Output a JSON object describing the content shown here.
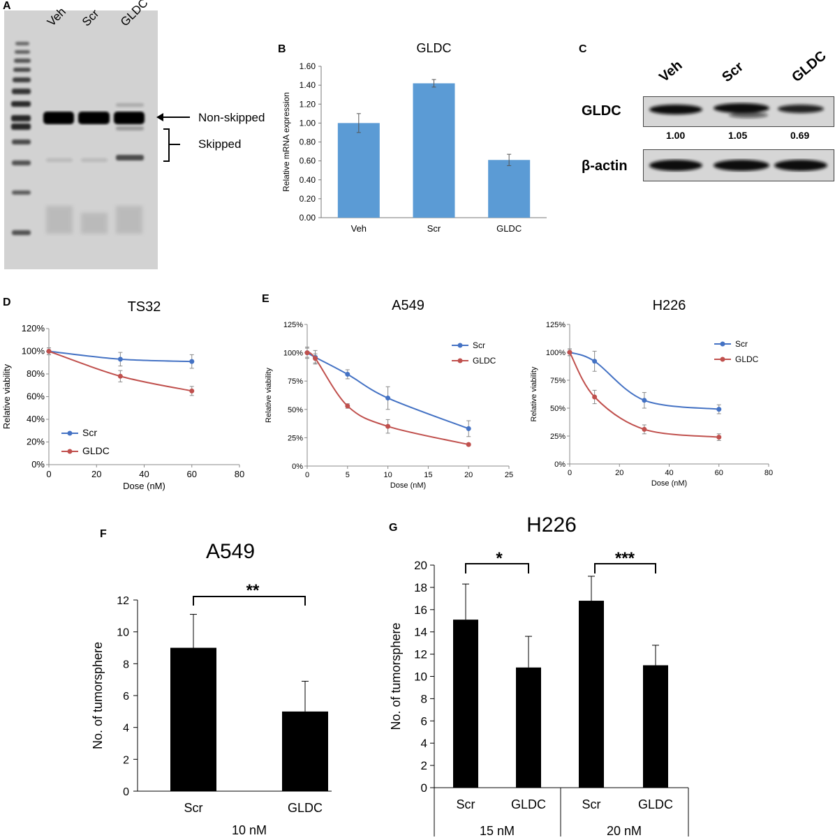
{
  "panels": {
    "A": "A",
    "B": "B",
    "C": "C",
    "D": "D",
    "E": "E",
    "F": "F",
    "G": "G"
  },
  "panel_a": {
    "lanes": [
      "Veh",
      "Scr",
      "GLDC"
    ],
    "non_skipped_label": "Non-skipped",
    "skipped_label": "Skipped"
  },
  "panel_c": {
    "lanes": [
      "Veh",
      "Scr",
      "GLDC"
    ],
    "gldc_label": "GLDC",
    "actin_label": "β-actin",
    "quant": [
      "1.00",
      "1.05",
      "0.69"
    ]
  },
  "colors": {
    "bar_blue": "#5b9bd5",
    "scr_line": "#4472c4",
    "gldc_line": "#c0504d",
    "black": "#000000"
  },
  "chart_data": [
    {
      "id": "B",
      "type": "bar",
      "title": "GLDC",
      "categories": [
        "Veh",
        "Scr",
        "GLDC"
      ],
      "values": [
        1.0,
        1.42,
        0.61
      ],
      "errors": [
        0.1,
        0.04,
        0.06
      ],
      "ylabel": "Relative mRNA expression",
      "xlabel": "",
      "ylim": [
        0,
        1.6
      ],
      "yticks": [
        "0.00",
        "0.20",
        "0.40",
        "0.60",
        "0.80",
        "1.00",
        "1.20",
        "1.40",
        "1.60"
      ]
    },
    {
      "id": "D",
      "type": "line",
      "title": "TS32",
      "xlabel": "Dose (nM)",
      "ylabel": "Relative viability",
      "xlim": [
        0,
        80
      ],
      "ylim": [
        0,
        120
      ],
      "xticks": [
        "0",
        "20",
        "40",
        "60",
        "80"
      ],
      "yticks": [
        "0%",
        "20%",
        "40%",
        "60%",
        "80%",
        "100%",
        "120%"
      ],
      "legend": "bottom-left",
      "series": [
        {
          "name": "Scr",
          "x": [
            0,
            30,
            60
          ],
          "y": [
            100,
            93,
            91
          ],
          "err": [
            3,
            6,
            6
          ]
        },
        {
          "name": "GLDC",
          "x": [
            0,
            30,
            60
          ],
          "y": [
            100,
            78,
            65
          ],
          "err": [
            3,
            5,
            4
          ]
        }
      ]
    },
    {
      "id": "E1",
      "type": "line",
      "title": "A549",
      "xlabel": "Dose (nM)",
      "ylabel": "Relative viability",
      "xlim": [
        0,
        25
      ],
      "ylim": [
        0,
        125
      ],
      "xticks": [
        "0",
        "5",
        "10",
        "15",
        "20",
        "25"
      ],
      "yticks": [
        "0%",
        "25%",
        "50%",
        "75%",
        "100%",
        "125%"
      ],
      "legend": "top-right",
      "series": [
        {
          "name": "Scr",
          "x": [
            0,
            1,
            5,
            10,
            20
          ],
          "y": [
            100,
            96,
            81,
            60,
            33
          ],
          "err": [
            5,
            6,
            4,
            10,
            7
          ]
        },
        {
          "name": "GLDC",
          "x": [
            0,
            1,
            5,
            10,
            20
          ],
          "y": [
            100,
            95,
            53,
            35,
            19
          ],
          "err": [
            4,
            4,
            2,
            6,
            1
          ]
        }
      ]
    },
    {
      "id": "E2",
      "type": "line",
      "title": "H226",
      "xlabel": "Dose (nM)",
      "ylabel": "Relative viability",
      "xlim": [
        0,
        80
      ],
      "ylim": [
        0,
        125
      ],
      "xticks": [
        "0",
        "20",
        "40",
        "60",
        "80"
      ],
      "yticks": [
        "0%",
        "25%",
        "50%",
        "75%",
        "100%",
        "125%"
      ],
      "legend": "top-right",
      "series": [
        {
          "name": "Scr",
          "x": [
            0,
            10,
            30,
            60
          ],
          "y": [
            100,
            92,
            57,
            49
          ],
          "err": [
            3,
            9,
            7,
            4
          ]
        },
        {
          "name": "GLDC",
          "x": [
            0,
            10,
            30,
            60
          ],
          "y": [
            100,
            60,
            31,
            24
          ],
          "err": [
            3,
            6,
            4,
            3
          ]
        }
      ]
    },
    {
      "id": "F",
      "type": "bar",
      "title": "A549",
      "categories": [
        "Scr",
        "GLDC"
      ],
      "group_label": "10 nM",
      "values": [
        9,
        5
      ],
      "errors": [
        2.1,
        1.9
      ],
      "ylabel": "No. of tumorsphere",
      "xlabel": "",
      "ylim": [
        0,
        12
      ],
      "yticks": [
        "0",
        "2",
        "4",
        "6",
        "8",
        "10",
        "12"
      ],
      "significance": "**"
    },
    {
      "id": "G",
      "type": "bar",
      "title": "H226",
      "categories": [
        "Scr",
        "GLDC",
        "Scr",
        "GLDC"
      ],
      "groups": [
        "15 nM",
        "20 nM"
      ],
      "values": [
        15.1,
        10.8,
        16.8,
        11.0
      ],
      "errors": [
        3.2,
        2.8,
        2.2,
        1.8
      ],
      "ylabel": "No. of tumorsphere",
      "xlabel": "",
      "ylim": [
        0,
        20
      ],
      "yticks": [
        "0",
        "2",
        "4",
        "6",
        "8",
        "10",
        "12",
        "14",
        "16",
        "18",
        "20"
      ],
      "significance": [
        "*",
        "***"
      ]
    }
  ]
}
